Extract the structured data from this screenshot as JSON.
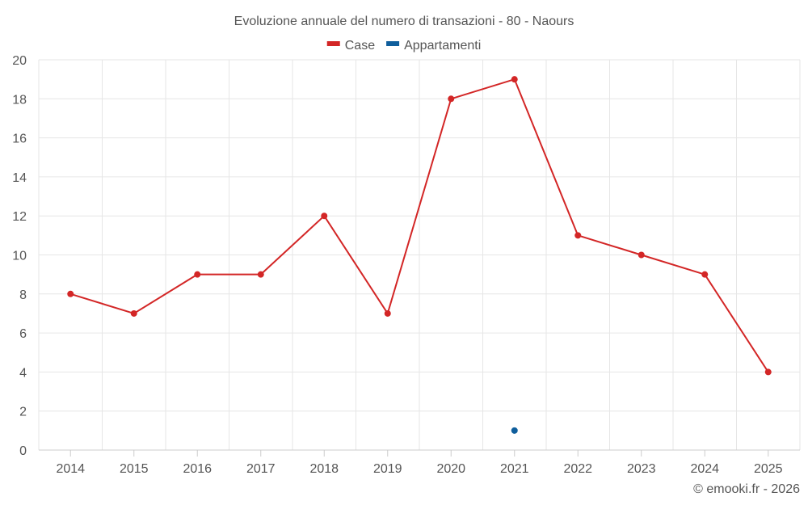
{
  "chart_data": {
    "type": "line",
    "title": "Evoluzione annuale del numero di transazioni - 80 - Naours",
    "categories": [
      "2014",
      "2015",
      "2016",
      "2017",
      "2018",
      "2019",
      "2020",
      "2021",
      "2022",
      "2023",
      "2024",
      "2025"
    ],
    "series": [
      {
        "name": "Case",
        "color": "#d32626",
        "values": [
          8,
          7,
          9,
          9,
          12,
          7,
          18,
          19,
          11,
          10,
          9,
          4
        ]
      },
      {
        "name": "Appartamenti",
        "color": "#0f5e9c",
        "values": [
          null,
          null,
          null,
          null,
          null,
          null,
          null,
          1,
          null,
          null,
          null,
          null
        ]
      }
    ],
    "ylim": [
      0,
      20
    ],
    "yticks": [
      0,
      2,
      4,
      6,
      8,
      10,
      12,
      14,
      16,
      18,
      20
    ],
    "legend_position": "top-center",
    "grid": true
  },
  "credit": "© emooki.fr - 2026"
}
